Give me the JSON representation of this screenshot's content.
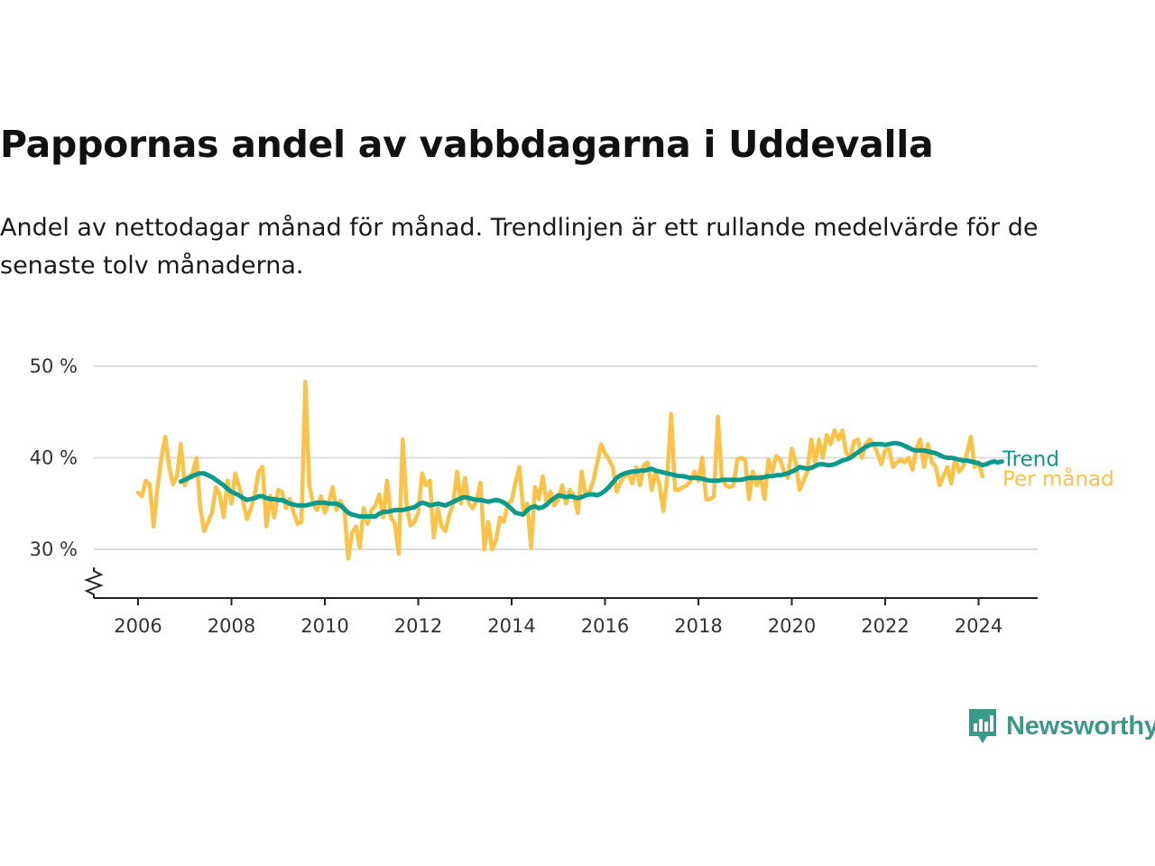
{
  "title": "Pappornas andel av vabbdagarna i Uddevalla",
  "subtitle": "Andel av nettodagar månad för månad. Trendlinjen är ett rullande medelvärde för de senaste tolv månaderna.",
  "brand": {
    "name": "Newsworthy",
    "color": "#3a9a8a",
    "icon": "bar-chart-badge-icon"
  },
  "colors": {
    "monthly": "#fbc245",
    "trend": "#0b9b8a",
    "grid": "#dddddd",
    "axis": "#222222"
  },
  "chart_data": {
    "type": "line",
    "ylim": [
      25,
      52
    ],
    "xlim": [
      2005.0,
      2025.2
    ],
    "y_ticks": [
      30,
      40,
      50
    ],
    "y_tick_labels": [
      "30 %",
      "40 %",
      "50 %"
    ],
    "x_ticks": [
      2006,
      2008,
      2010,
      2012,
      2014,
      2016,
      2018,
      2020,
      2022,
      2024
    ],
    "x_tick_labels": [
      "2006",
      "2008",
      "2010",
      "2012",
      "2014",
      "2016",
      "2018",
      "2020",
      "2022",
      "2024"
    ],
    "y_axis_break": true,
    "grid": "horizontal",
    "series": [
      {
        "name": "Per månad",
        "color": "#fbc245",
        "x_start": "2006-01",
        "x_step": "month",
        "values": [
          36.2,
          35.8,
          37.5,
          37.1,
          32.5,
          36.8,
          40.0,
          42.3,
          39.0,
          37.1,
          38.0,
          41.5,
          37.0,
          37.9,
          38.3,
          40.0,
          34.5,
          32.0,
          33.0,
          34.0,
          36.8,
          36.0,
          33.5,
          37.5,
          35.0,
          38.3,
          36.8,
          35.2,
          33.3,
          34.5,
          36.0,
          38.5,
          39.0,
          32.5,
          35.8,
          33.5,
          36.5,
          36.3,
          34.5,
          35.5,
          34.0,
          32.8,
          33.0,
          48.3,
          37.0,
          35.0,
          34.3,
          35.8,
          34.0,
          35.0,
          36.8,
          34.3,
          35.3,
          34.5,
          29.0,
          31.8,
          32.5,
          30.2,
          34.5,
          32.8,
          34.3,
          34.8,
          36.0,
          33.5,
          37.5,
          33.5,
          32.8,
          29.5,
          42.0,
          34.8,
          32.6,
          33.0,
          34.0,
          38.3,
          37.0,
          37.5,
          31.3,
          34.5,
          32.5,
          32.0,
          33.8,
          35.0,
          38.5,
          35.0,
          37.8,
          35.0,
          34.5,
          35.3,
          37.3,
          30.0,
          33.0,
          30.0,
          31.0,
          33.5,
          33.0,
          35.0,
          35.3,
          37.3,
          39.0,
          34.3,
          35.0,
          30.2,
          36.8,
          35.5,
          38.0,
          35.0,
          36.3,
          34.8,
          35.5,
          37.0,
          35.0,
          36.5,
          35.8,
          34.0,
          38.5,
          36.0,
          36.3,
          37.5,
          39.5,
          41.5,
          40.5,
          39.8,
          39.0,
          36.3,
          37.3,
          38.0,
          38.3,
          37.2,
          39.0,
          37.0,
          39.2,
          39.5,
          36.5,
          38.5,
          37.0,
          34.2,
          38.0,
          44.8,
          36.5,
          36.5,
          36.8,
          37.0,
          37.5,
          38.5,
          37.5,
          40.0,
          35.5,
          35.5,
          35.8,
          44.5,
          37.8,
          37.0,
          36.8,
          37.0,
          39.8,
          40.0,
          39.8,
          35.5,
          38.5,
          37.0,
          38.0,
          35.5,
          39.8,
          38.5,
          40.2,
          39.8,
          38.5,
          37.8,
          41.0,
          39.5,
          36.5,
          37.5,
          38.5,
          42.0,
          39.5,
          42.0,
          40.0,
          42.5,
          41.5,
          43.0,
          42.0,
          43.0,
          40.5,
          40.0,
          41.8,
          42.0,
          40.0,
          41.5,
          42.0,
          41.5,
          40.5,
          39.3,
          40.8,
          41.0,
          39.0,
          39.5,
          39.8,
          39.5,
          40.0,
          38.7,
          41.0,
          42.0,
          39.0,
          41.5,
          39.5,
          39.0,
          37.0,
          38.0,
          39.0,
          37.2,
          40.0,
          38.5,
          39.0,
          40.5,
          42.3,
          39.0,
          39.5,
          38.0
        ]
      },
      {
        "name": "Trend",
        "color": "#0b9b8a",
        "x_start": "2006-12",
        "x_step": "month",
        "values": [
          37.4,
          37.6,
          37.8,
          38.0,
          38.2,
          38.3,
          38.3,
          38.1,
          37.9,
          37.6,
          37.3,
          37.0,
          36.6,
          36.3,
          36.1,
          35.9,
          35.6,
          35.4,
          35.5,
          35.6,
          35.8,
          35.8,
          35.6,
          35.5,
          35.5,
          35.4,
          35.4,
          35.2,
          35.0,
          34.9,
          34.8,
          34.8,
          34.8,
          34.9,
          35.0,
          35.1,
          35.1,
          35.1,
          35.0,
          35.0,
          35.0,
          34.8,
          34.4,
          34.0,
          33.8,
          33.7,
          33.6,
          33.6,
          33.6,
          33.6,
          33.6,
          33.9,
          34.1,
          34.1,
          34.2,
          34.3,
          34.3,
          34.3,
          34.4,
          34.5,
          34.6,
          34.9,
          35.1,
          35.0,
          34.8,
          34.9,
          35.0,
          34.9,
          34.8,
          35.0,
          35.2,
          35.4,
          35.6,
          35.7,
          35.6,
          35.5,
          35.4,
          35.4,
          35.3,
          35.2,
          35.3,
          35.4,
          35.3,
          35.1,
          34.8,
          34.4,
          34.0,
          33.9,
          33.8,
          34.3,
          34.6,
          34.7,
          34.5,
          34.6,
          34.9,
          35.3,
          35.6,
          35.9,
          35.8,
          35.7,
          35.8,
          35.7,
          35.6,
          35.7,
          35.9,
          36.0,
          36.0,
          35.9,
          36.1,
          36.4,
          36.8,
          37.3,
          37.8,
          38.1,
          38.3,
          38.4,
          38.5,
          38.5,
          38.6,
          38.6,
          38.7,
          38.8,
          38.6,
          38.5,
          38.4,
          38.3,
          38.2,
          38.1,
          38.0,
          38.0,
          37.9,
          37.8,
          37.8,
          37.8,
          37.7,
          37.6,
          37.5,
          37.5,
          37.5,
          37.6,
          37.6,
          37.6,
          37.6,
          37.6,
          37.6,
          37.7,
          37.8,
          37.8,
          37.8,
          37.8,
          37.9,
          38.0,
          38.0,
          38.1,
          38.1,
          38.2,
          38.3,
          38.5,
          38.7,
          39.0,
          38.9,
          38.8,
          38.9,
          39.1,
          39.3,
          39.3,
          39.2,
          39.2,
          39.3,
          39.5,
          39.7,
          39.8,
          40.0,
          40.3,
          40.6,
          40.9,
          41.2,
          41.4,
          41.5,
          41.5,
          41.5,
          41.4,
          41.5,
          41.6,
          41.6,
          41.5,
          41.3,
          41.1,
          40.9,
          40.8,
          40.8,
          40.8,
          40.7,
          40.6,
          40.5,
          40.3,
          40.1,
          40.0,
          40.0,
          39.9,
          39.8,
          39.7,
          39.7,
          39.6,
          39.5,
          39.4,
          39.2,
          39.3,
          39.5,
          39.6,
          39.5,
          39.6
        ]
      }
    ]
  }
}
